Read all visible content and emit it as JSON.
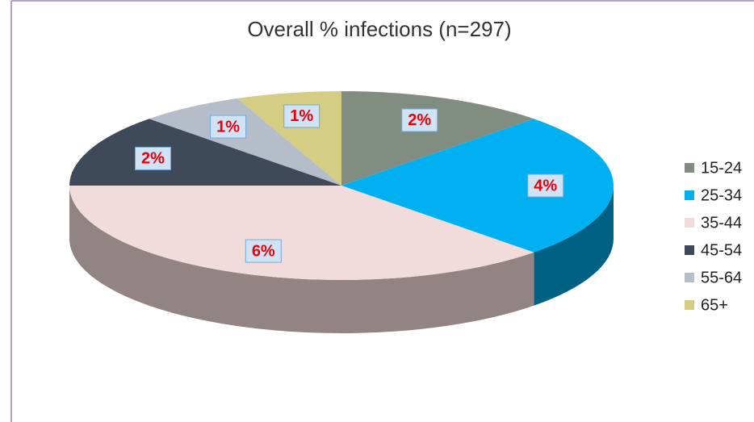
{
  "chart_data": {
    "type": "pie",
    "title": "Overall % infections (n=297)",
    "categories": [
      "15-24",
      "25-34",
      "35-44",
      "45-54",
      "55-64",
      "65+"
    ],
    "values": [
      2,
      4,
      6,
      2,
      1,
      1
    ],
    "value_labels": [
      "2%",
      "4%",
      "6%",
      "2%",
      "1%",
      "1%"
    ],
    "colors": [
      "#808d80",
      "#00b0f0",
      "#f2dcdb",
      "#3e4a59",
      "#b5bdc9",
      "#d4cd83"
    ],
    "legend": "right"
  }
}
